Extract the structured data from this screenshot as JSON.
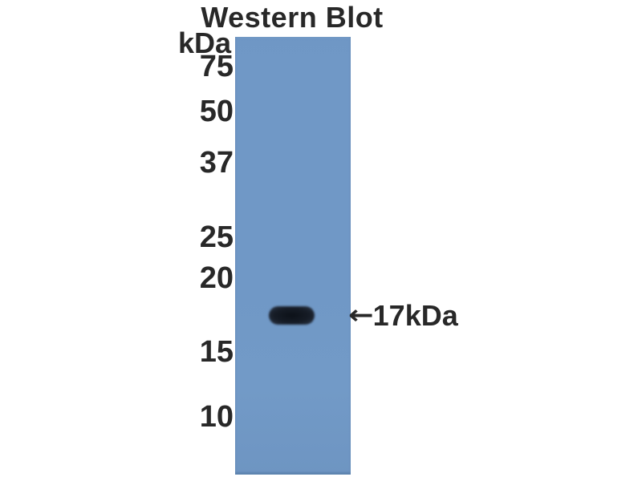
{
  "figure": {
    "title": "Western Blot",
    "unit_label": "kDa",
    "ladder": [
      "75",
      "50",
      "37",
      "25",
      "20",
      "15",
      "10"
    ],
    "ladder_values_kda": [
      75,
      50,
      37,
      25,
      20,
      15,
      10
    ],
    "band": {
      "annotation": "17kDa",
      "arrow_glyph": "←",
      "approx_kda": 17,
      "lane_position": "single lane, band between 20 and 15 kDa markers"
    },
    "colors": {
      "background": "#ffffff",
      "lane_blue": "#7098c6",
      "band_dark": "#161c26",
      "text": "#282828"
    }
  }
}
